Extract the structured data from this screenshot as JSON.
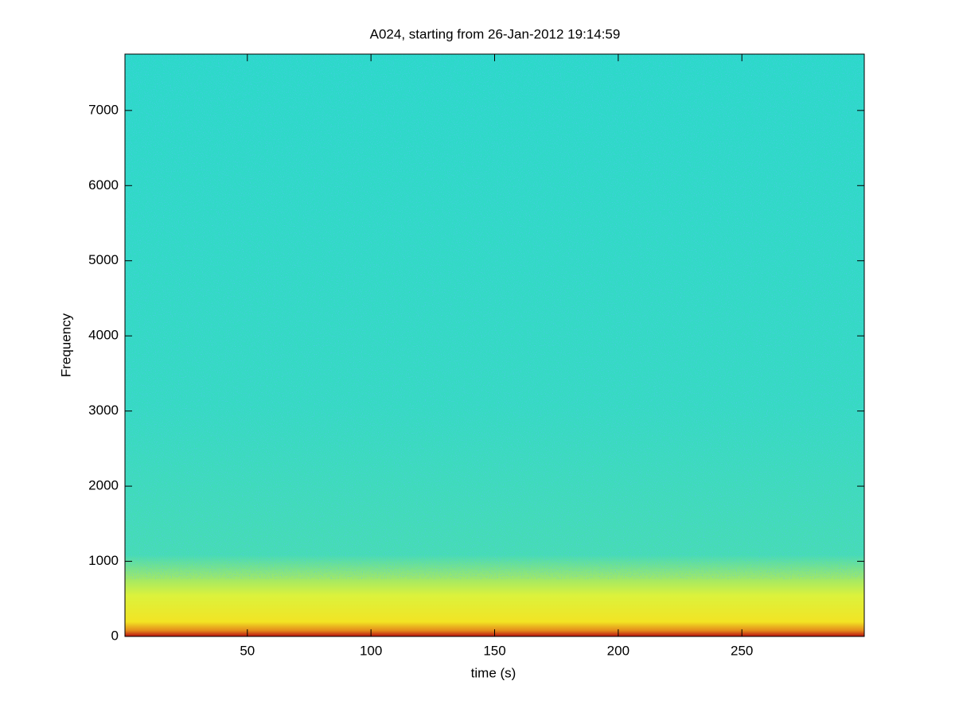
{
  "chart_data": {
    "type": "spectrogram",
    "title": "A024, starting from 26-Jan-2012 19:14:59",
    "xlabel": "time (s)",
    "ylabel": "Frequency",
    "xlim": [
      0.5,
      299.5
    ],
    "ylim": [
      0,
      7750
    ],
    "xticks": [
      50,
      100,
      150,
      200,
      250
    ],
    "yticks": [
      0,
      1000,
      2000,
      3000,
      4000,
      5000,
      6000,
      7000
    ],
    "grid": false
  }
}
